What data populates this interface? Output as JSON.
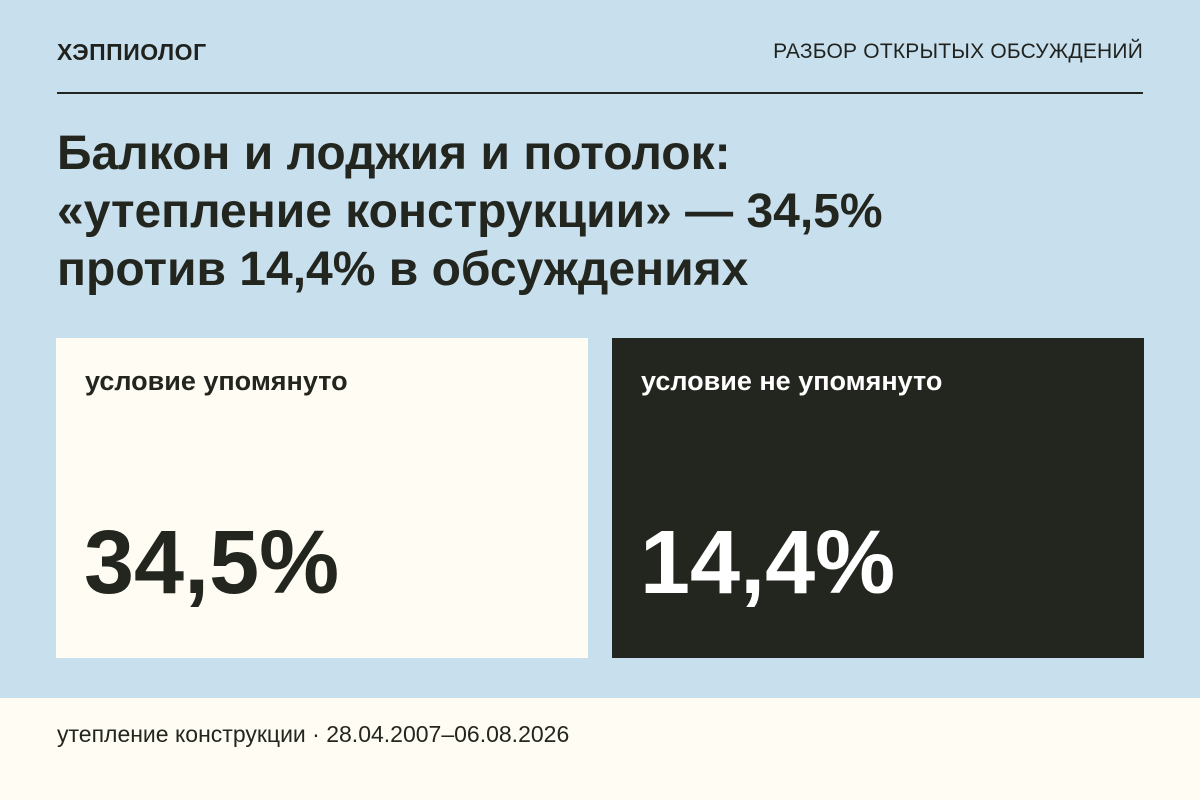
{
  "header": {
    "brand": "ХЭППИОЛОГ",
    "rubric": "РАЗБОР ОТКРЫТЫХ ОБСУЖДЕНИЙ"
  },
  "headline": {
    "lines": [
      "Балкон и лоджия и потолок:",
      "«утепление конструкции» — 34,5%",
      "против 14,4% в обсуждениях"
    ]
  },
  "cards": [
    {
      "label": "условие упомянуто",
      "value": "34,5%"
    },
    {
      "label": "условие не упомянуто",
      "value": "14,4%"
    }
  ],
  "footer": {
    "text": "утепление конструкции · 28.04.2007–06.08.2026"
  },
  "colors": {
    "background": "#c8dfee",
    "light_panel": "#fffcf4",
    "dark_panel": "#23261f",
    "text_dark": "#23261f",
    "text_light": "#ffffff"
  }
}
